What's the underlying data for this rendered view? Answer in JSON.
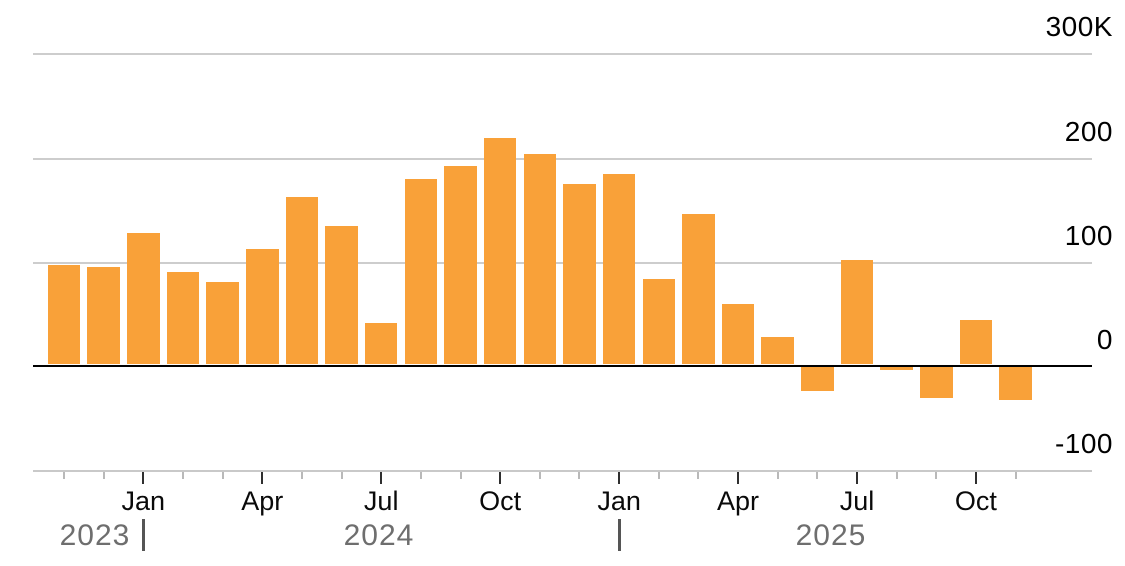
{
  "chart_data": {
    "type": "bar",
    "title": "",
    "unit": "thousands (K)",
    "bar_color": "#f9a139",
    "x": [
      "Nov 2023",
      "Dec 2023",
      "Jan 2024",
      "Feb 2024",
      "Mar 2024",
      "Apr 2024",
      "May 2024",
      "Jun 2024",
      "Jul 2024",
      "Aug 2024",
      "Sep 2024",
      "Oct 2024",
      "Nov 2024",
      "Dec 2024",
      "Jan 2025",
      "Feb 2025",
      "Mar 2025",
      "Apr 2025",
      "May 2025",
      "Jun 2025",
      "Jul 2025",
      "Aug 2025",
      "Sep 2025",
      "Oct 2025",
      "Nov 2025"
    ],
    "month_short": [
      "Nov",
      "Dec",
      "Jan",
      "Feb",
      "Mar",
      "Apr",
      "May",
      "Jun",
      "Jul",
      "Aug",
      "Sep",
      "Oct",
      "Nov",
      "Dec",
      "Jan",
      "Feb",
      "Mar",
      "Apr",
      "May",
      "Jun",
      "Jul",
      "Aug",
      "Sep",
      "Oct",
      "Nov"
    ],
    "values": [
      98,
      96,
      129,
      91,
      82,
      113,
      163,
      135,
      42,
      180,
      193,
      220,
      204,
      176,
      185,
      84,
      147,
      60,
      29,
      -23,
      103,
      -3,
      -30,
      45,
      -32
    ],
    "ylim": [
      -100,
      300
    ],
    "y_ticks": [
      {
        "label": "300K",
        "value": 300
      },
      {
        "label": "200",
        "value": 200
      },
      {
        "label": "100",
        "value": 100
      },
      {
        "label": "0",
        "value": 0
      },
      {
        "label": "-100",
        "value": -100
      }
    ],
    "x_major_tick_months": [
      "Jan",
      "Apr",
      "Jul",
      "Oct"
    ],
    "year_labels": [
      {
        "label": "2023"
      },
      {
        "label": "2024"
      },
      {
        "label": "2025"
      }
    ],
    "grid": "horizontal",
    "legend": "none",
    "baseline_color": "#000000",
    "gridline_color": "#cdcdcd"
  }
}
